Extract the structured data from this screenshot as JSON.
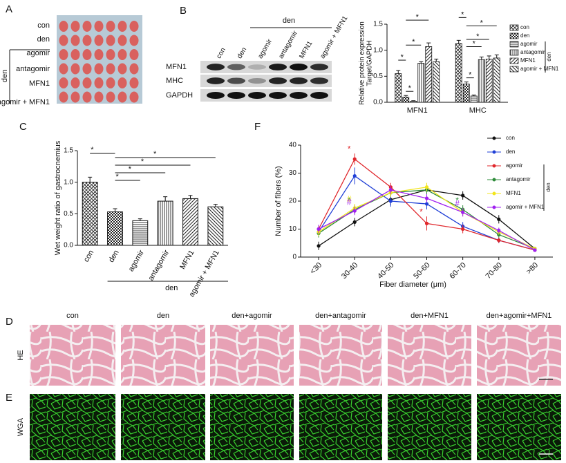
{
  "panel_labels": [
    "A",
    "B",
    "C",
    "F",
    "D",
    "E"
  ],
  "panel_a": {
    "rows": [
      "con",
      "den",
      "agomir",
      "antagomir",
      "MFN1",
      "agomir + MFN1"
    ],
    "group": "den"
  },
  "panel_b_blot": {
    "columns": [
      "con",
      "den",
      "agomir",
      "antagomir",
      "MFN1",
      "agomir + MFN1"
    ],
    "group": "den",
    "rows": [
      "MFN1",
      "MHC",
      "GAPDH"
    ]
  },
  "chart_data": [
    {
      "type": "bar",
      "ylabel": [
        "Relative protein expression",
        "Target/GAPDH"
      ],
      "categories": [
        "MFN1",
        "MHC"
      ],
      "ylim": [
        0,
        1.5
      ],
      "yticks": [
        {
          "value": 0,
          "label": "0.0"
        },
        {
          "value": 0.5,
          "label": "0.5"
        },
        {
          "value": 1,
          "label": "1.0"
        },
        {
          "value": 1.5,
          "label": "1.5"
        }
      ],
      "series": [
        {
          "name": "con",
          "pattern": "crosshatch",
          "values": [
            0.55,
            1.13
          ],
          "errors": [
            0.06,
            0.06
          ]
        },
        {
          "name": "den",
          "pattern": "checker",
          "values": [
            0.1,
            0.35
          ],
          "errors": [
            0.03,
            0.04
          ]
        },
        {
          "name": "agomir",
          "pattern": "hlines",
          "values": [
            0.02,
            0.12
          ],
          "errors": [
            0.01,
            0.02
          ]
        },
        {
          "name": "antagomir",
          "pattern": "vlines",
          "values": [
            0.75,
            0.82
          ],
          "errors": [
            0.03,
            0.05
          ]
        },
        {
          "name": "MFN1",
          "pattern": "diag",
          "values": [
            1.07,
            0.83
          ],
          "errors": [
            0.07,
            0.06
          ]
        },
        {
          "name": "agomir + MFN1",
          "pattern": "rdiag",
          "values": [
            0.78,
            0.85
          ],
          "errors": [
            0.05,
            0.06
          ]
        }
      ],
      "legend_group": "den",
      "significance": [
        {
          "text": "*",
          "category": 0,
          "pair": [
            1,
            2
          ]
        },
        {
          "text": "*",
          "category": 0,
          "pair": [
            0,
            1
          ]
        },
        {
          "text": "*",
          "category": 0,
          "pair": [
            1,
            3
          ]
        },
        {
          "text": "*",
          "category": 0,
          "pair": [
            1,
            4
          ]
        },
        {
          "text": "*",
          "category": 1,
          "pair": [
            1,
            2
          ]
        },
        {
          "text": "*",
          "category": 1,
          "pair": [
            1,
            3
          ]
        },
        {
          "text": "*",
          "category": 1,
          "pair": [
            1,
            4
          ]
        },
        {
          "text": "*",
          "category": 1,
          "pair": [
            0,
            1
          ]
        },
        {
          "text": "*",
          "category": 1,
          "pair": [
            1,
            5
          ]
        }
      ]
    },
    {
      "type": "bar",
      "ylabel": "Wet weight ratio of gastrocnemius",
      "categories": [
        "con",
        "den",
        "agomir",
        "antagomir",
        "MFN1",
        "agomir + MFN1"
      ],
      "values": [
        1.0,
        0.53,
        0.39,
        0.7,
        0.74,
        0.61
      ],
      "errors": [
        0.08,
        0.05,
        0.03,
        0.07,
        0.05,
        0.04
      ],
      "patterns": [
        "crosshatch",
        "checker",
        "hlines",
        "vlines",
        "diag",
        "rdiag"
      ],
      "ylim": [
        0,
        1.5
      ],
      "yticks": [
        {
          "value": 0,
          "label": "0.0"
        },
        {
          "value": 0.5,
          "label": "0.5"
        },
        {
          "value": 1,
          "label": "1.0"
        },
        {
          "value": 1.5,
          "label": "1.5"
        }
      ],
      "group": "den",
      "significance": [
        {
          "text": "*",
          "pair": [
            1,
            2
          ]
        },
        {
          "text": "*",
          "pair": [
            1,
            3
          ]
        },
        {
          "text": "*",
          "pair": [
            1,
            4
          ]
        },
        {
          "text": "*",
          "pair": [
            1,
            5
          ]
        },
        {
          "text": "*",
          "pair": [
            0,
            1
          ]
        }
      ]
    },
    {
      "type": "line",
      "xlabel": "Fiber diameter (μm)",
      "ylabel": "Number of fibers (%)",
      "categories": [
        "<30",
        "30-40",
        "40-50",
        "50-60",
        "60-70",
        "70-80",
        ">80"
      ],
      "ylim": [
        0,
        40
      ],
      "yticks": [
        0,
        10,
        20,
        30,
        40
      ],
      "series": [
        {
          "name": "con",
          "color": "#111111",
          "values": [
            4,
            12.5,
            20.5,
            24,
            22,
            13.5,
            3
          ],
          "errors": [
            1.5,
            1.5,
            2,
            1.5,
            1.5,
            1.5,
            0.5
          ]
        },
        {
          "name": "den",
          "color": "#1f3fd6",
          "values": [
            9,
            29,
            20,
            19,
            11,
            6,
            2.5
          ],
          "errors": [
            1.5,
            3,
            2,
            2,
            1.5,
            1,
            0.5
          ]
        },
        {
          "name": "agomir",
          "color": "#e0282d",
          "values": [
            10,
            35,
            25,
            12,
            10,
            6,
            2.5
          ],
          "errors": [
            1.5,
            2,
            1.5,
            2.5,
            1.5,
            1,
            0.5
          ]
        },
        {
          "name": "antagomir",
          "color": "#2e8b3a",
          "values": [
            8.5,
            17,
            23,
            24,
            17,
            8,
            3
          ],
          "errors": [
            1.5,
            1.5,
            1.5,
            1.5,
            1.5,
            1,
            0.5
          ]
        },
        {
          "name": "MFN1",
          "color": "#f2e51c",
          "values": [
            9,
            17.5,
            23,
            25,
            16,
            9,
            3
          ],
          "errors": [
            1.5,
            1.5,
            1.5,
            1.5,
            1.5,
            1,
            0.5
          ]
        },
        {
          "name": "agomir + MFN1",
          "color": "#a020f0",
          "values": [
            10,
            16.5,
            24,
            21,
            16,
            9.5,
            2.5
          ],
          "errors": [
            1.5,
            1.5,
            1.5,
            1.5,
            1.5,
            1,
            0.5
          ]
        }
      ],
      "legend_group": "den",
      "annotations": [
        {
          "text": "*",
          "series": 2,
          "index": 1
        },
        {
          "text": "*",
          "series": 2,
          "index": 3
        },
        {
          "text": "*",
          "series": 3,
          "index": 1
        },
        {
          "text": "#",
          "series": 4,
          "index": 1
        },
        {
          "text": "#",
          "series": 5,
          "index": 1
        },
        {
          "text": "#",
          "series": 5,
          "index": 4
        },
        {
          "text": "*",
          "series": 3,
          "index": 4
        }
      ]
    }
  ],
  "panel_d": {
    "columns": [
      "con",
      "den",
      "den+agomir",
      "den+antagomir",
      "den+MFN1",
      "den+agomir+MFN1"
    ],
    "row": "HE"
  },
  "panel_e": {
    "row": "WGA"
  }
}
